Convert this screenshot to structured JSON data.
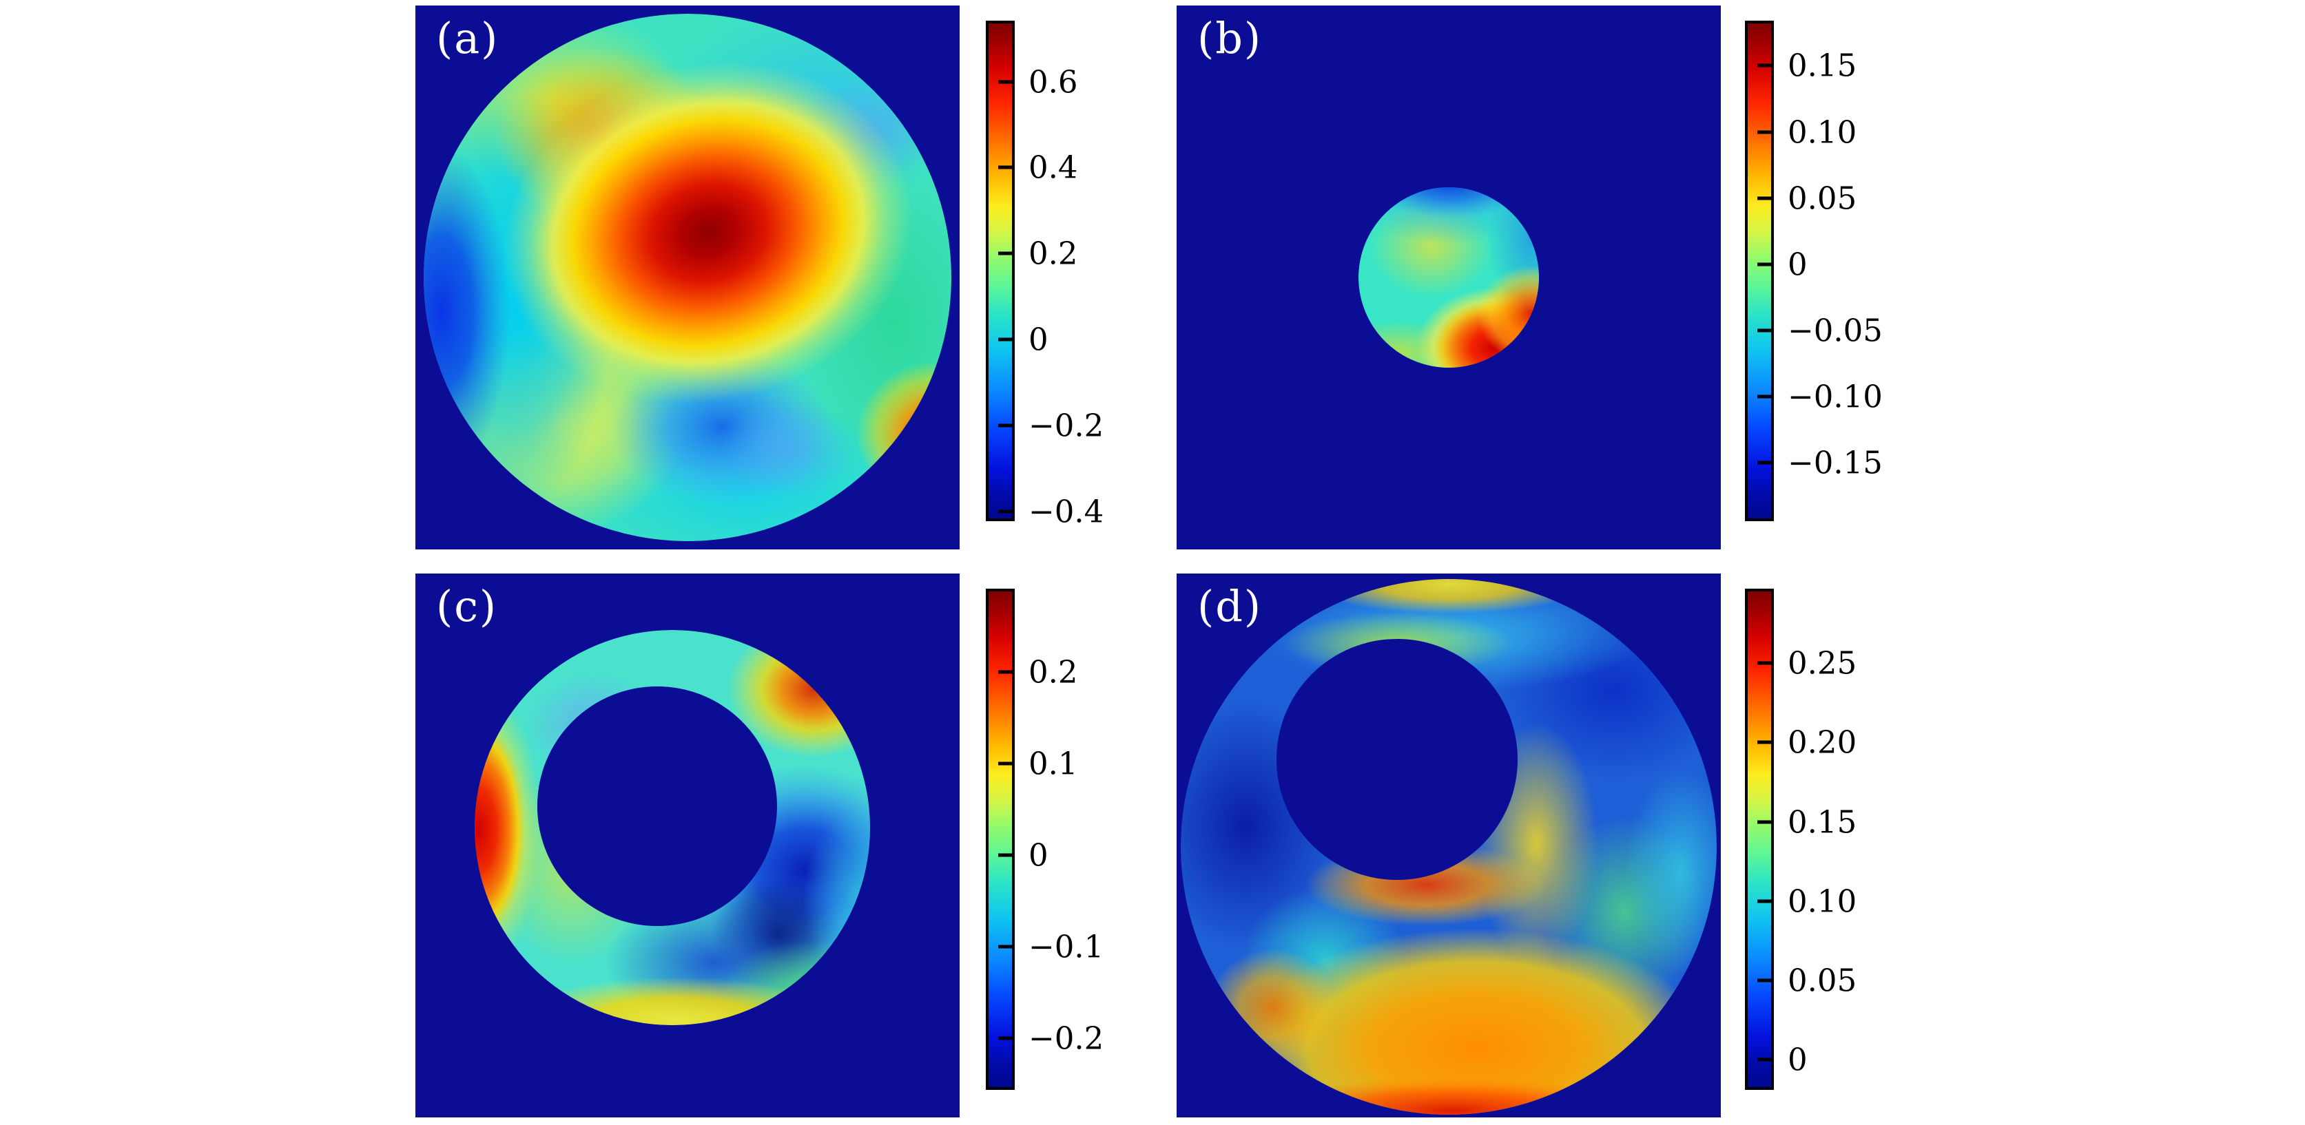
{
  "figure": {
    "background_color": "#ffffff",
    "panel_background_color": "#0c0d95",
    "label_color": "#ffffff",
    "tick_color": "#000000"
  },
  "chart_data": {
    "type": "heatmap",
    "colormap": "jet",
    "layout": "2x2 grid of square panels, each with its own vertical jet colorbar on the right",
    "panels": [
      {
        "id": "a",
        "label": "(a)",
        "domain": "full disk centered in panel",
        "features": "large dark-red maximum blob upper-middle, strong blue minimum at left edge, cyan vertical band left, yellow-green upper-left, cyan upper-right, green right side, blue blob lower-middle, yellow patch lower-left, orange spot at lower-right rim",
        "colorbar": {
          "vmin": -0.423,
          "vmax": 0.742,
          "ticks": [
            {
              "label": "0.6",
              "value": 0.6
            },
            {
              "label": "0.4",
              "value": 0.4
            },
            {
              "label": "0.2",
              "value": 0.2
            },
            {
              "label": "0",
              "value": 0.0
            },
            {
              "label": "−0.2",
              "value": -0.2
            },
            {
              "label": "−0.4",
              "value": -0.4
            }
          ]
        }
      },
      {
        "id": "b",
        "label": "(b)",
        "domain": "small disk (radius ~1/6 of panel) centered in panel",
        "features": "yellow-green maximum near center, dark blue arc on top rim, cyan-green body, bright red-orange crescent along lower-right rim with yellow fringe",
        "colorbar": {
          "vmin": -0.194,
          "vmax": 0.184,
          "ticks": [
            {
              "label": "0.15",
              "value": 0.15
            },
            {
              "label": "0.10",
              "value": 0.1
            },
            {
              "label": "0.05",
              "value": 0.05
            },
            {
              "label": "0",
              "value": 0.0
            },
            {
              "label": "−0.05",
              "value": -0.05
            },
            {
              "label": "−0.10",
              "value": -0.1
            },
            {
              "label": "−0.15",
              "value": -0.15
            }
          ]
        }
      },
      {
        "id": "c",
        "label": "(c)",
        "domain": "annulus (ring) slightly up-left of panel center, inner radius ~0.6 of outer",
        "features": "red arc on left outer rim, orange-red arc on upper-right outer rim, yellow arc on bottom rim, cyan top region with light-blue blob upper-left, green-yellow left interior, deep blue minimum region right/below the hole",
        "colorbar": {
          "vmin": -0.256,
          "vmax": 0.291,
          "ticks": [
            {
              "label": "0.2",
              "value": 0.2
            },
            {
              "label": "0.1",
              "value": 0.1
            },
            {
              "label": "0",
              "value": 0.0
            },
            {
              "label": "−0.1",
              "value": -0.1
            },
            {
              "label": "−0.2",
              "value": -0.2
            }
          ]
        }
      },
      {
        "id": "d",
        "label": "(d)",
        "domain": "large annulus filling panel, hole offset up-left so ring is thick at bottom-right",
        "features": "thin cyan band on top with yellow outer arc, dark blue regions left and upper-right, green-yellow arc on hole top edge, thick bright orange region at bottom with red outer arc, red arc on hole bottom edge, yellow band inner-right, green and cyan patches right side",
        "colorbar": {
          "vmin": -0.019,
          "vmax": 0.297,
          "ticks": [
            {
              "label": "0.25",
              "value": 0.25
            },
            {
              "label": "0.20",
              "value": 0.2
            },
            {
              "label": "0.15",
              "value": 0.15
            },
            {
              "label": "0.10",
              "value": 0.1
            },
            {
              "label": "0.05",
              "value": 0.05
            },
            {
              "label": "0",
              "value": 0.0
            }
          ]
        }
      }
    ]
  }
}
